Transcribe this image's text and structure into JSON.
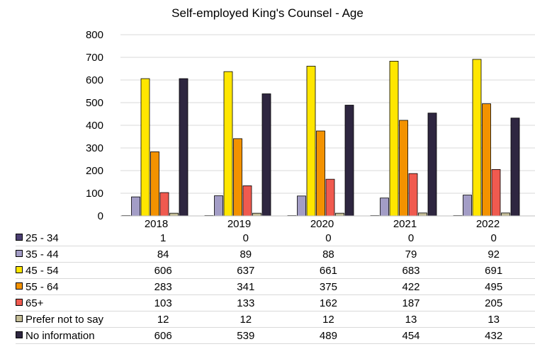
{
  "chart_data": {
    "type": "bar",
    "title": "Self-employed King's Counsel - Age",
    "categories": [
      "2018",
      "2019",
      "2020",
      "2021",
      "2022"
    ],
    "ylim": [
      0,
      800
    ],
    "yticks": [
      0,
      100,
      200,
      300,
      400,
      500,
      600,
      700,
      800
    ],
    "grid": true,
    "legend": "data-table",
    "series": [
      {
        "name": "25 - 34",
        "color": "#4b3f72",
        "values": [
          1,
          0,
          0,
          0,
          0
        ]
      },
      {
        "name": "35 - 44",
        "color": "#a39dc6",
        "values": [
          84,
          89,
          88,
          79,
          92
        ]
      },
      {
        "name": "45 - 54",
        "color": "#ffe600",
        "values": [
          606,
          637,
          661,
          683,
          691
        ]
      },
      {
        "name": "55 - 64",
        "color": "#f39200",
        "values": [
          283,
          341,
          375,
          422,
          495
        ]
      },
      {
        "name": "65+",
        "color": "#f05a4f",
        "values": [
          103,
          133,
          162,
          187,
          205
        ]
      },
      {
        "name": "Prefer not to say",
        "color": "#c4bd97",
        "values": [
          12,
          12,
          12,
          13,
          13
        ]
      },
      {
        "name": "No information",
        "color": "#2e2640",
        "values": [
          606,
          539,
          489,
          454,
          432
        ]
      }
    ]
  }
}
